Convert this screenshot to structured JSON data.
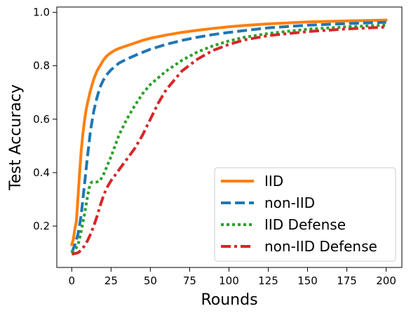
{
  "chart_data": {
    "type": "line",
    "title": "",
    "xlabel": "Rounds",
    "ylabel": "Test Accuracy",
    "xlim": [
      -9.5,
      210
    ],
    "ylim": [
      0.045,
      1.02
    ],
    "xticks": [
      0,
      25,
      50,
      75,
      100,
      125,
      150,
      175,
      200
    ],
    "yticks": [
      0.2,
      0.4,
      0.6,
      0.8,
      1.0
    ],
    "ytick_labels": [
      "0.2",
      "0.4",
      "0.6",
      "0.8",
      "1.0"
    ],
    "grid": false,
    "legend": "lower-right",
    "series": [
      {
        "name": "IID",
        "color": "#ff7f0e",
        "style": "solid",
        "x": [
          0,
          1,
          2,
          3,
          4,
          5,
          6,
          7,
          8,
          9,
          10,
          12,
          14,
          16,
          18,
          20,
          22,
          24,
          26,
          28,
          30,
          35,
          40,
          45,
          50,
          60,
          70,
          80,
          90,
          100,
          110,
          125,
          150,
          175,
          200
        ],
        "y": [
          0.13,
          0.15,
          0.19,
          0.22,
          0.31,
          0.4,
          0.48,
          0.54,
          0.59,
          0.63,
          0.66,
          0.71,
          0.75,
          0.78,
          0.8,
          0.82,
          0.835,
          0.845,
          0.853,
          0.86,
          0.865,
          0.875,
          0.885,
          0.895,
          0.903,
          0.915,
          0.925,
          0.933,
          0.94,
          0.946,
          0.951,
          0.957,
          0.964,
          0.968,
          0.971
        ]
      },
      {
        "name": "non-IID",
        "color": "#1f77b4",
        "style": "dashed",
        "x": [
          0,
          2,
          4,
          6,
          8,
          10,
          12,
          14,
          16,
          18,
          20,
          22,
          25,
          30,
          35,
          40,
          50,
          60,
          70,
          80,
          90,
          100,
          110,
          125,
          150,
          175,
          200
        ],
        "y": [
          0.1,
          0.13,
          0.17,
          0.24,
          0.35,
          0.46,
          0.56,
          0.63,
          0.68,
          0.72,
          0.745,
          0.765,
          0.785,
          0.81,
          0.825,
          0.838,
          0.862,
          0.88,
          0.895,
          0.907,
          0.917,
          0.925,
          0.932,
          0.942,
          0.952,
          0.958,
          0.963
        ]
      },
      {
        "name": "IID Defense",
        "color": "#2ca02c",
        "style": "dotted",
        "x": [
          0,
          2,
          4,
          6,
          8,
          10,
          11,
          12,
          13,
          14,
          16,
          18,
          20,
          25,
          30,
          35,
          40,
          45,
          50,
          60,
          70,
          80,
          90,
          100,
          110,
          125,
          150,
          175,
          200
        ],
        "y": [
          0.1,
          0.11,
          0.13,
          0.18,
          0.24,
          0.31,
          0.34,
          0.36,
          0.365,
          0.365,
          0.365,
          0.37,
          0.39,
          0.46,
          0.54,
          0.6,
          0.65,
          0.695,
          0.73,
          0.78,
          0.82,
          0.852,
          0.875,
          0.893,
          0.907,
          0.921,
          0.937,
          0.946,
          0.952
        ]
      },
      {
        "name": "non-IID Defense",
        "color": "#d62728",
        "style": "dashdot",
        "x": [
          0,
          2,
          4,
          6,
          8,
          10,
          12,
          14,
          16,
          18,
          20,
          22,
          25,
          30,
          35,
          40,
          45,
          50,
          55,
          60,
          70,
          80,
          90,
          100,
          110,
          125,
          150,
          175,
          200
        ],
        "y": [
          0.095,
          0.097,
          0.1,
          0.11,
          0.125,
          0.145,
          0.17,
          0.2,
          0.235,
          0.275,
          0.31,
          0.34,
          0.37,
          0.41,
          0.45,
          0.49,
          0.54,
          0.6,
          0.66,
          0.71,
          0.78,
          0.825,
          0.858,
          0.88,
          0.897,
          0.913,
          0.928,
          0.938,
          0.945
        ]
      }
    ]
  }
}
